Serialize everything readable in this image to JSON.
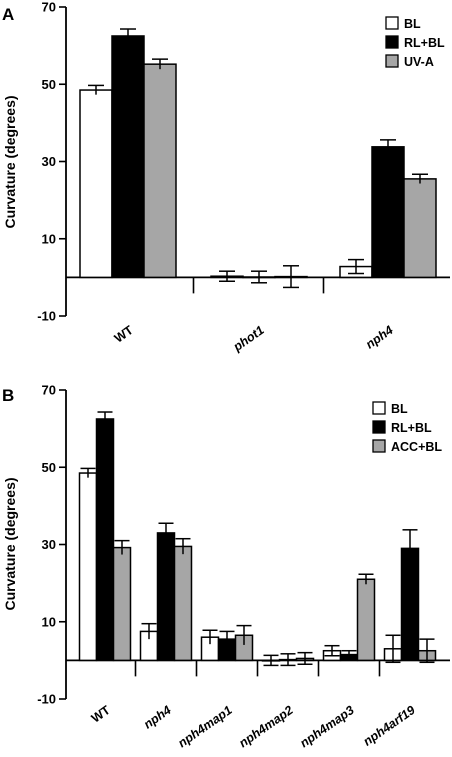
{
  "chart_data": [
    {
      "type": "bar",
      "panel": "A",
      "ylabel": "Curvature (degrees)",
      "ylim": [
        -10,
        70
      ],
      "yticks": [
        -10,
        10,
        30,
        50,
        70
      ],
      "categories": [
        "WT",
        "phot1",
        "nph4"
      ],
      "category_italic": [
        false,
        true,
        true
      ],
      "series": [
        {
          "name": "BL",
          "color": "#ffffff",
          "values": [
            48.5,
            0.3,
            2.8
          ],
          "errors": [
            1.2,
            1.3,
            1.8
          ]
        },
        {
          "name": "RL+BL",
          "color": "#000000",
          "values": [
            62.5,
            0.1,
            33.8
          ],
          "errors": [
            1.8,
            1.5,
            1.8
          ]
        },
        {
          "name": "UV-A",
          "color": "#a6a6a6",
          "values": [
            55.2,
            0.2,
            25.5
          ],
          "errors": [
            1.3,
            2.8,
            1.2
          ]
        }
      ],
      "legend_position": "top-right",
      "grid": false
    },
    {
      "type": "bar",
      "panel": "B",
      "ylabel": "Curvature (degrees)",
      "ylim": [
        -10,
        70
      ],
      "yticks": [
        -10,
        10,
        30,
        50,
        70
      ],
      "categories": [
        "WT",
        "nph4",
        "nph4map1",
        "nph4map2",
        "nph4map3",
        "nph4arf19"
      ],
      "category_italic": [
        false,
        true,
        true,
        true,
        true,
        true
      ],
      "series": [
        {
          "name": "BL",
          "color": "#ffffff",
          "values": [
            48.5,
            7.5,
            6.0,
            0.0,
            2.5,
            3.0
          ],
          "errors": [
            1.2,
            2.0,
            1.8,
            1.3,
            1.3,
            3.5
          ]
        },
        {
          "name": "RL+BL",
          "color": "#000000",
          "values": [
            62.5,
            33.0,
            5.5,
            0.2,
            1.5,
            29.0
          ],
          "errors": [
            1.8,
            2.5,
            2.0,
            1.5,
            1.0,
            4.8
          ]
        },
        {
          "name": "ACC+BL",
          "color": "#a6a6a6",
          "values": [
            29.2,
            29.5,
            6.5,
            0.5,
            21.0,
            2.5
          ],
          "errors": [
            1.8,
            2.0,
            2.5,
            1.5,
            1.3,
            3.0
          ]
        }
      ],
      "legend_position": "top-right",
      "grid": false
    }
  ]
}
